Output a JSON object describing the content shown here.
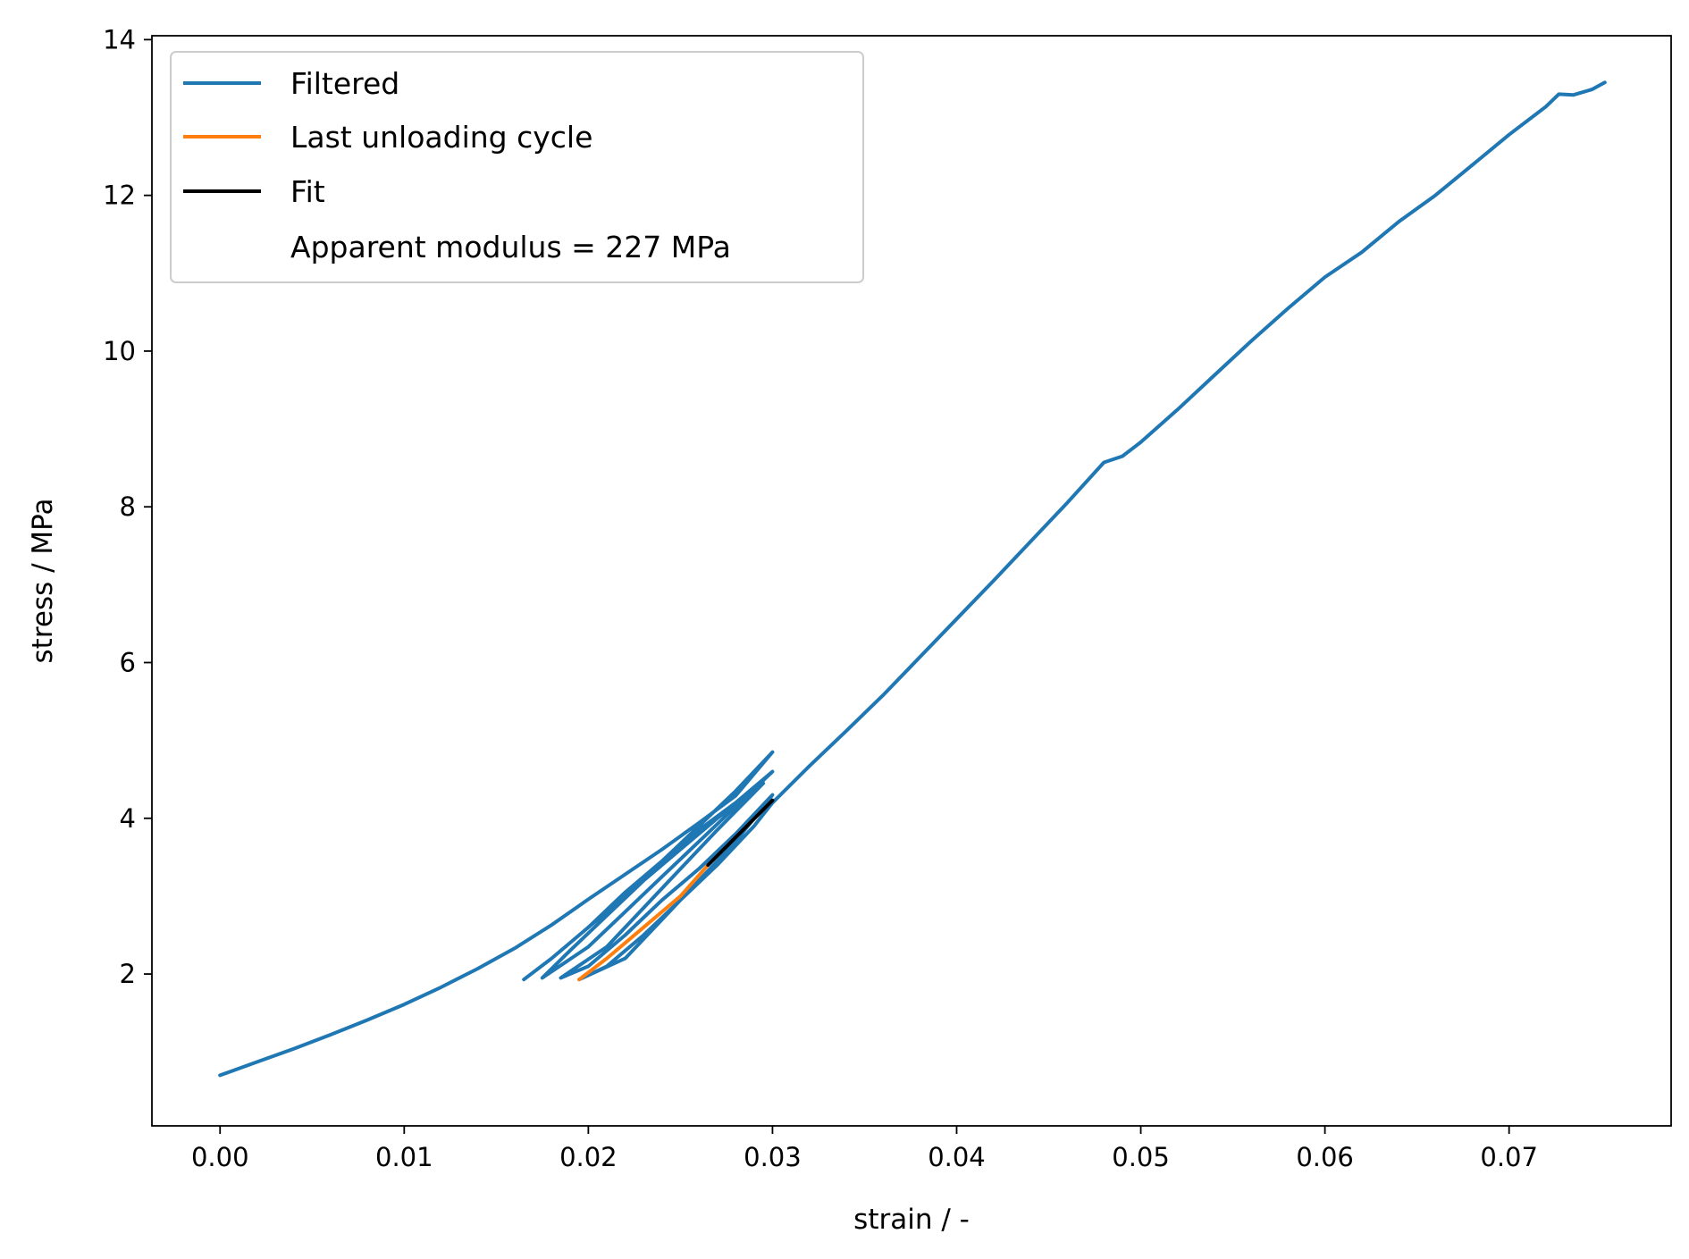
{
  "chart_data": {
    "type": "line",
    "title": "",
    "xlabel": "strain / -",
    "ylabel": "stress / MPa",
    "xlim": [
      -0.0037,
      0.0788
    ],
    "ylim": [
      0.05,
      14.05
    ],
    "xticks": [
      0.0,
      0.01,
      0.02,
      0.03,
      0.04,
      0.05,
      0.06,
      0.07
    ],
    "xtick_labels": [
      "0.00",
      "0.01",
      "0.02",
      "0.03",
      "0.04",
      "0.05",
      "0.06",
      "0.07"
    ],
    "yticks": [
      2,
      4,
      6,
      8,
      10,
      12,
      14
    ],
    "ytick_labels": [
      "2",
      "4",
      "6",
      "8",
      "10",
      "12",
      "14"
    ],
    "grid": false,
    "legend": {
      "placement": "top-left",
      "entries": [
        "Filtered",
        "Last unloading cycle",
        "Fit",
        "Apparent modulus = 227 MPa"
      ]
    },
    "series": [
      {
        "name": "Filtered",
        "color": "#1f77b4",
        "x": [
          0.0,
          0.002,
          0.004,
          0.006,
          0.008,
          0.01,
          0.012,
          0.014,
          0.016,
          0.018,
          0.02,
          0.022,
          0.024,
          0.026,
          0.028,
          0.03,
          0.028,
          0.026,
          0.024,
          0.022,
          0.02,
          0.018,
          0.0165,
          0.018,
          0.02,
          0.022,
          0.024,
          0.026,
          0.028,
          0.03,
          0.028,
          0.026,
          0.024,
          0.022,
          0.02,
          0.0175,
          0.019,
          0.021,
          0.023,
          0.025,
          0.027,
          0.0295,
          0.027,
          0.025,
          0.023,
          0.021,
          0.0185,
          0.02,
          0.022,
          0.024,
          0.026,
          0.028,
          0.03,
          0.028,
          0.026,
          0.024,
          0.022,
          0.0195,
          0.021,
          0.023,
          0.025,
          0.027,
          0.029,
          0.03,
          0.032,
          0.034,
          0.036,
          0.038,
          0.04,
          0.042,
          0.044,
          0.046,
          0.048,
          0.049,
          0.05,
          0.052,
          0.054,
          0.056,
          0.058,
          0.06,
          0.062,
          0.064,
          0.066,
          0.068,
          0.07,
          0.072,
          0.0727,
          0.0735,
          0.0745,
          0.0752
        ],
        "y": [
          0.7,
          0.87,
          1.04,
          1.22,
          1.41,
          1.61,
          1.83,
          2.07,
          2.33,
          2.63,
          2.96,
          3.28,
          3.6,
          3.94,
          4.29,
          4.85,
          4.35,
          3.9,
          3.45,
          3.0,
          2.6,
          2.2,
          1.93,
          2.2,
          2.6,
          3.05,
          3.45,
          3.85,
          4.2,
          4.6,
          4.15,
          3.7,
          3.25,
          2.8,
          2.35,
          1.95,
          2.3,
          2.75,
          3.2,
          3.6,
          4.0,
          4.45,
          3.85,
          3.35,
          2.85,
          2.35,
          1.95,
          2.1,
          2.5,
          2.95,
          3.35,
          3.8,
          4.3,
          3.7,
          3.2,
          2.7,
          2.2,
          1.93,
          2.1,
          2.5,
          2.95,
          3.4,
          3.9,
          4.2,
          4.67,
          5.12,
          5.58,
          6.07,
          6.56,
          7.05,
          7.55,
          8.05,
          8.57,
          8.65,
          8.83,
          9.25,
          9.69,
          10.13,
          10.55,
          10.95,
          11.27,
          11.66,
          12.0,
          12.39,
          12.78,
          13.14,
          13.3,
          13.29,
          13.36,
          13.45
        ]
      },
      {
        "name": "Last unloading cycle",
        "color": "#ff7f0e",
        "x": [
          0.0195,
          0.021,
          0.023,
          0.025,
          0.0265
        ],
        "y": [
          1.93,
          2.2,
          2.6,
          3.0,
          3.4
        ]
      },
      {
        "name": "Fit",
        "color": "#000000",
        "x": [
          0.0265,
          0.03
        ],
        "y": [
          3.4,
          4.23
        ]
      }
    ]
  }
}
